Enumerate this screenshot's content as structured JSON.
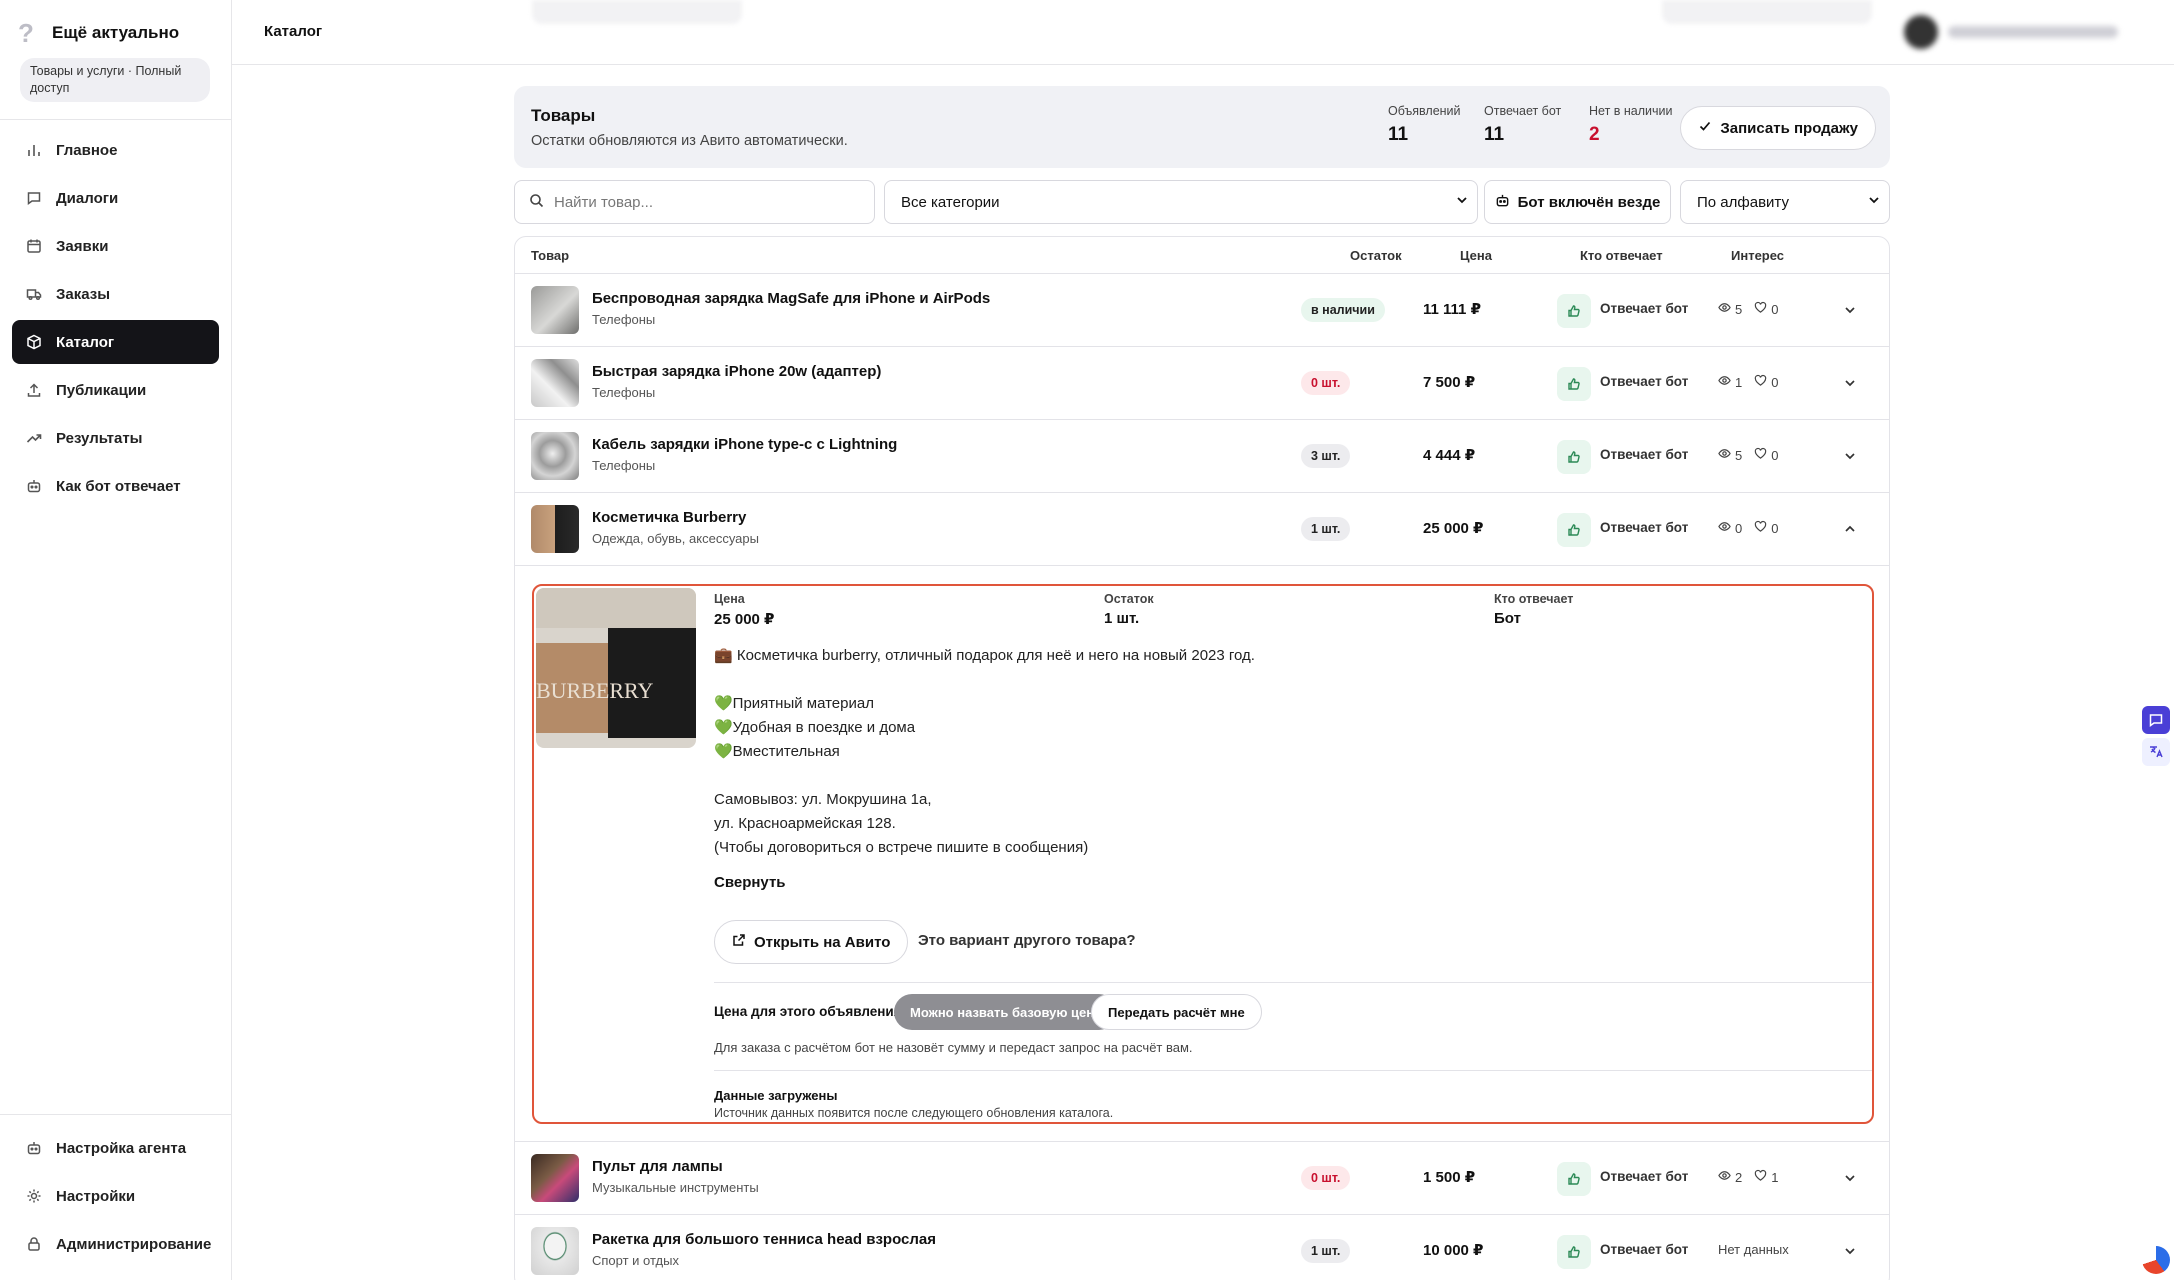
{
  "brand": {
    "logo_glyph": "?",
    "name": "Ещё актуально",
    "plan": "Товары и услуги · Полный доступ"
  },
  "nav": {
    "items": [
      {
        "label": "Главное",
        "icon": "bar-chart-icon"
      },
      {
        "label": "Диалоги",
        "icon": "chat-icon"
      },
      {
        "label": "Заявки",
        "icon": "calendar-icon"
      },
      {
        "label": "Заказы",
        "icon": "truck-icon"
      },
      {
        "label": "Каталог",
        "icon": "box-icon",
        "active": true
      },
      {
        "label": "Публикации",
        "icon": "upload-icon"
      },
      {
        "label": "Результаты",
        "icon": "trending-up-icon"
      },
      {
        "label": "Как бот отвечает",
        "icon": "robot-icon"
      }
    ],
    "bottom": [
      {
        "label": "Настройка агента",
        "icon": "robot-icon"
      },
      {
        "label": "Настройки",
        "icon": "sun-gear-icon"
      },
      {
        "label": "Администрирование",
        "icon": "lock-icon"
      }
    ]
  },
  "topbar": {
    "title": "Каталог"
  },
  "summary": {
    "title": "Товары",
    "subtitle": "Остатки обновляются из Авито автоматически.",
    "stats": [
      {
        "label": "Объявлений",
        "value": "11"
      },
      {
        "label": "Отвечает бот",
        "value": "11"
      },
      {
        "label": "Нет в наличии",
        "value": "2"
      }
    ],
    "record_button": "Записать продажу"
  },
  "filters": {
    "search_placeholder": "Найти товар...",
    "category": "Все категории",
    "bot_button": "Бот включён везде",
    "sort": "По алфавиту"
  },
  "table": {
    "headers": {
      "product": "Товар",
      "stock": "Остаток",
      "price": "Цена",
      "who": "Кто отвечает",
      "interest": "Интерес"
    },
    "rows_top": [
      {
        "name": "Беспроводная зарядка MagSafe для iPhone и AirPods",
        "category": "Телефоны",
        "stock": "в наличии",
        "stock_type": "green",
        "price": "11 111 ₽",
        "who": "Отвечает бот",
        "views": "5",
        "likes": "0"
      },
      {
        "name": "Быстрая зарядка iPhone 20w (адаптер)",
        "category": "Телефоны",
        "stock": "0 шт.",
        "stock_type": "pink",
        "price": "7 500 ₽",
        "who": "Отвечает бот",
        "views": "1",
        "likes": "0"
      },
      {
        "name": "Кабель зарядки iPhone type-c с Lightning",
        "category": "Телефоны",
        "stock": "3 шт.",
        "stock_type": "gray",
        "price": "4 444 ₽",
        "who": "Отвечает бот",
        "views": "5",
        "likes": "0"
      },
      {
        "name": "Косметичка Burberry",
        "category": "Одежда, обувь, аксессуары",
        "stock": "1 шт.",
        "stock_type": "gray",
        "price": "25 000 ₽",
        "who": "Отвечает бот",
        "views": "0",
        "likes": "0"
      }
    ],
    "rows_bottom": [
      {
        "name": "Пульт для лампы",
        "category": "Музыкальные инструменты",
        "stock": "0 шт.",
        "stock_type": "pink",
        "price": "1 500 ₽",
        "who": "Отвечает бот",
        "views": "2",
        "likes": "1"
      },
      {
        "name": "Ракетка для большого тенниса head взрослая",
        "category": "Спорт и отдых",
        "stock": "1 шт.",
        "stock_type": "gray",
        "price": "10 000 ₽",
        "who": "Отвечает бот",
        "no_data": "Нет данных"
      }
    ]
  },
  "expanded": {
    "image_text": "BURBERRY",
    "price_label": "Цена",
    "price_value": "25 000 ₽",
    "stock_label": "Остаток",
    "stock_value": "1 шт.",
    "who_label": "Кто отвечает",
    "who_value": "Бот",
    "description": [
      "💼 Косметичка burberry, отличный подарок для неё и него на новый 2023 год.",
      "",
      "💚Приятный материал",
      "💚Удобная в поездке и дома",
      "💚Вместительная",
      "",
      "Самовывоз: ул. Мокрушина 1а,",
      "ул. Красноармейская 128.",
      "(Чтобы договориться о встрече пишите в сообщения)"
    ],
    "collapse": "Свернуть",
    "open_avito": "Открыть на Авито",
    "variant_link": "Это вариант другого товара?",
    "price_mode_label": "Цена для этого объявления",
    "price_mode_active": "Можно назвать базовую цену",
    "price_mode_other": "Передать расчёт мне",
    "price_hint": "Для заказа с расчётом бот не назовёт сумму и передаст запрос на расчёт вам.",
    "loaded_title": "Данные загружены",
    "loaded_sub": "Источник данных появится после следующего обновления каталога."
  },
  "colors": {
    "accent_dark": "#141418",
    "danger": "#c8102e",
    "highlight_border": "#e0553a",
    "bot_green": "#2c8a56"
  }
}
